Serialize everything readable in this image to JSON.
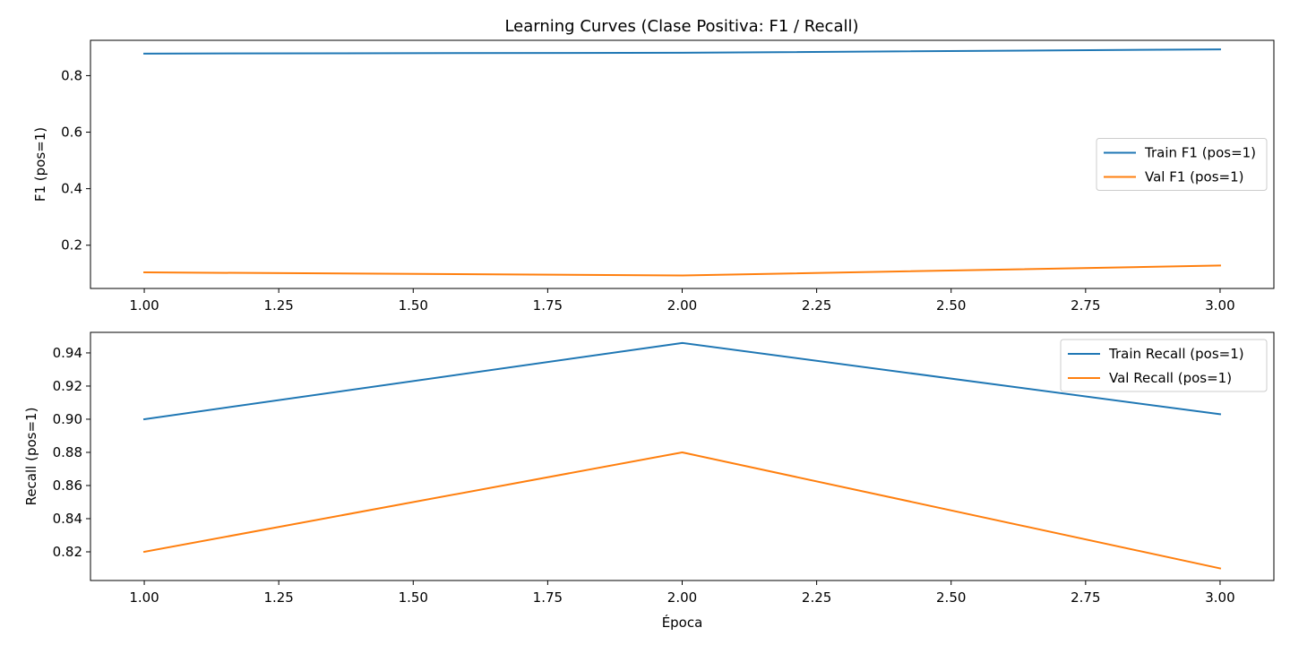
{
  "figure_title": "Learning Curves (Clase Positiva: F1 / Recall)",
  "chart_data": [
    {
      "type": "line",
      "title": "",
      "xlabel": "",
      "ylabel": "F1 (pos=1)",
      "x": [
        1,
        2,
        3
      ],
      "xlim": [
        0.9,
        3.1
      ],
      "ylim": [
        0.047,
        0.925
      ],
      "xticks": [
        "1.00",
        "1.25",
        "1.50",
        "1.75",
        "2.00",
        "2.25",
        "2.50",
        "2.75",
        "3.00"
      ],
      "yticks": [
        "0.2",
        "0.4",
        "0.6",
        "0.8"
      ],
      "legend_position": "center-right",
      "grid": false,
      "series": [
        {
          "name": "Train F1 (pos=1)",
          "color": "#1f77b4",
          "values": [
            0.878,
            0.881,
            0.893
          ]
        },
        {
          "name": "Val F1 (pos=1)",
          "color": "#ff7f0e",
          "values": [
            0.104,
            0.093,
            0.128
          ]
        }
      ]
    },
    {
      "type": "line",
      "title": "",
      "xlabel": "Época",
      "ylabel": "Recall (pos=1)",
      "x": [
        1,
        2,
        3
      ],
      "xlim": [
        0.9,
        3.1
      ],
      "ylim": [
        0.8027,
        0.9524
      ],
      "xticks": [
        "1.00",
        "1.25",
        "1.50",
        "1.75",
        "2.00",
        "2.25",
        "2.50",
        "2.75",
        "3.00"
      ],
      "yticks": [
        "0.82",
        "0.84",
        "0.86",
        "0.88",
        "0.90",
        "0.92",
        "0.94"
      ],
      "legend_position": "top-right",
      "grid": false,
      "series": [
        {
          "name": "Train Recall (pos=1)",
          "color": "#1f77b4",
          "values": [
            0.9,
            0.946,
            0.903
          ]
        },
        {
          "name": "Val Recall (pos=1)",
          "color": "#ff7f0e",
          "values": [
            0.82,
            0.88,
            0.81
          ]
        }
      ]
    }
  ]
}
